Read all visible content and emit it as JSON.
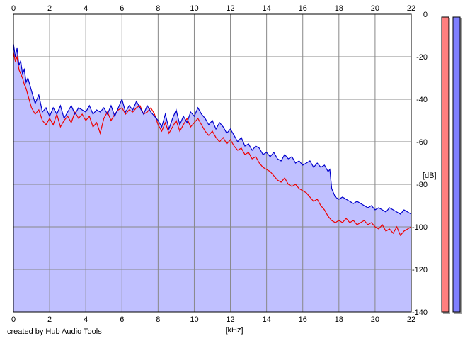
{
  "chart_data": {
    "type": "area",
    "xlabel": "[kHz]",
    "ylabel": "[dB]",
    "xlim": [
      0,
      22
    ],
    "ylim": [
      -140,
      0
    ],
    "x_ticks": [
      0,
      2,
      4,
      6,
      8,
      10,
      12,
      14,
      16,
      18,
      20,
      22
    ],
    "y_ticks": [
      0,
      -20,
      -40,
      -60,
      -80,
      -100,
      -120,
      -140
    ],
    "grid": true,
    "series": [
      {
        "color": "#0000cc",
        "fill": "#c0c0ff",
        "x": [
          0,
          0.1,
          0.2,
          0.3,
          0.4,
          0.5,
          0.6,
          0.7,
          0.8,
          1,
          1.2,
          1.4,
          1.6,
          1.8,
          2,
          2.2,
          2.4,
          2.6,
          2.8,
          3,
          3.2,
          3.4,
          3.6,
          3.8,
          4,
          4.2,
          4.4,
          4.6,
          4.8,
          5,
          5.2,
          5.4,
          5.6,
          5.8,
          6,
          6.2,
          6.4,
          6.6,
          6.8,
          7,
          7.2,
          7.4,
          7.6,
          7.8,
          8,
          8.2,
          8.4,
          8.6,
          8.8,
          9,
          9.2,
          9.4,
          9.6,
          9.8,
          10,
          10.2,
          10.4,
          10.6,
          10.8,
          11,
          11.2,
          11.4,
          11.6,
          11.8,
          12,
          12.2,
          12.4,
          12.6,
          12.8,
          13,
          13.2,
          13.4,
          13.6,
          13.8,
          14,
          14.2,
          14.4,
          14.6,
          14.8,
          15,
          15.2,
          15.4,
          15.6,
          15.8,
          16,
          16.2,
          16.4,
          16.6,
          16.8,
          17,
          17.2,
          17.4,
          17.5,
          17.6,
          17.8,
          18,
          18.2,
          18.4,
          18.6,
          18.8,
          19,
          19.2,
          19.4,
          19.6,
          19.8,
          20,
          20.2,
          20.4,
          20.6,
          20.8,
          21,
          21.2,
          21.4,
          21.6,
          21.8,
          22
        ],
        "values": [
          -14,
          -20,
          -16,
          -24,
          -22,
          -28,
          -26,
          -32,
          -30,
          -36,
          -42,
          -38,
          -46,
          -44,
          -48,
          -44,
          -47,
          -43,
          -49,
          -46,
          -43,
          -47,
          -44,
          -45,
          -46,
          -43,
          -47,
          -45,
          -46,
          -44,
          -47,
          -43,
          -48,
          -44,
          -40,
          -46,
          -43,
          -45,
          -41,
          -44,
          -47,
          -43,
          -46,
          -48,
          -50,
          -53,
          -47,
          -54,
          -49,
          -45,
          -52,
          -48,
          -51,
          -46,
          -48,
          -44,
          -47,
          -49,
          -52,
          -50,
          -54,
          -51,
          -53,
          -56,
          -54,
          -57,
          -60,
          -58,
          -62,
          -61,
          -64,
          -62,
          -63,
          -66,
          -65,
          -67,
          -65,
          -68,
          -69,
          -66,
          -68,
          -67,
          -70,
          -69,
          -71,
          -70,
          -69,
          -72,
          -70,
          -72,
          -71,
          -74,
          -73,
          -82,
          -86,
          -87,
          -86,
          -87,
          -88,
          -89,
          -88,
          -89,
          -90,
          -91,
          -90,
          -92,
          -91,
          -92,
          -93,
          -91,
          -92,
          -93,
          -94,
          -92,
          -93,
          -94
        ]
      },
      {
        "color": "#ee0000",
        "x": [
          0,
          0.1,
          0.2,
          0.3,
          0.4,
          0.5,
          0.6,
          0.7,
          0.8,
          1,
          1.2,
          1.4,
          1.6,
          1.8,
          2,
          2.2,
          2.4,
          2.6,
          2.8,
          3,
          3.2,
          3.4,
          3.6,
          3.8,
          4,
          4.2,
          4.4,
          4.6,
          4.8,
          5,
          5.2,
          5.4,
          5.6,
          5.8,
          6,
          6.2,
          6.4,
          6.6,
          6.8,
          7,
          7.2,
          7.4,
          7.6,
          7.8,
          8,
          8.2,
          8.4,
          8.6,
          8.8,
          9,
          9.2,
          9.4,
          9.6,
          9.8,
          10,
          10.2,
          10.4,
          10.6,
          10.8,
          11,
          11.2,
          11.4,
          11.6,
          11.8,
          12,
          12.2,
          12.4,
          12.6,
          12.8,
          13,
          13.2,
          13.4,
          13.6,
          13.8,
          14,
          14.2,
          14.4,
          14.6,
          14.8,
          15,
          15.2,
          15.4,
          15.6,
          15.8,
          16,
          16.2,
          16.4,
          16.6,
          16.8,
          17,
          17.2,
          17.4,
          17.6,
          17.8,
          18,
          18.2,
          18.4,
          18.6,
          18.8,
          19,
          19.2,
          19.4,
          19.6,
          19.8,
          20,
          20.2,
          20.4,
          20.6,
          20.8,
          21,
          21.2,
          21.4,
          21.6,
          21.8,
          22
        ],
        "values": [
          -18,
          -22,
          -20,
          -26,
          -28,
          -30,
          -33,
          -35,
          -38,
          -44,
          -47,
          -45,
          -50,
          -52,
          -49,
          -52,
          -47,
          -53,
          -50,
          -48,
          -51,
          -46,
          -49,
          -47,
          -50,
          -48,
          -53,
          -51,
          -56,
          -49,
          -46,
          -50,
          -47,
          -45,
          -44,
          -47,
          -45,
          -46,
          -44,
          -43,
          -47,
          -46,
          -44,
          -47,
          -52,
          -55,
          -51,
          -56,
          -53,
          -50,
          -55,
          -52,
          -49,
          -53,
          -51,
          -49,
          -52,
          -55,
          -57,
          -55,
          -58,
          -60,
          -58,
          -61,
          -59,
          -62,
          -64,
          -63,
          -66,
          -65,
          -68,
          -67,
          -70,
          -72,
          -73,
          -74,
          -76,
          -78,
          -79,
          -77,
          -80,
          -81,
          -80,
          -82,
          -83,
          -84,
          -86,
          -88,
          -87,
          -90,
          -92,
          -95,
          -97,
          -98,
          -97,
          -98,
          -96,
          -98,
          -97,
          -99,
          -98,
          -97,
          -99,
          -98,
          -100,
          -101,
          -99,
          -102,
          -101,
          -103,
          -100,
          -104,
          -102,
          -101,
          -100
        ]
      }
    ]
  },
  "level_meters": [
    {
      "color": "#ff7f7f",
      "level_db": 0
    },
    {
      "color": "#7f7fff",
      "level_db": 0
    }
  ],
  "credit": "created by Hub Audio Tools"
}
